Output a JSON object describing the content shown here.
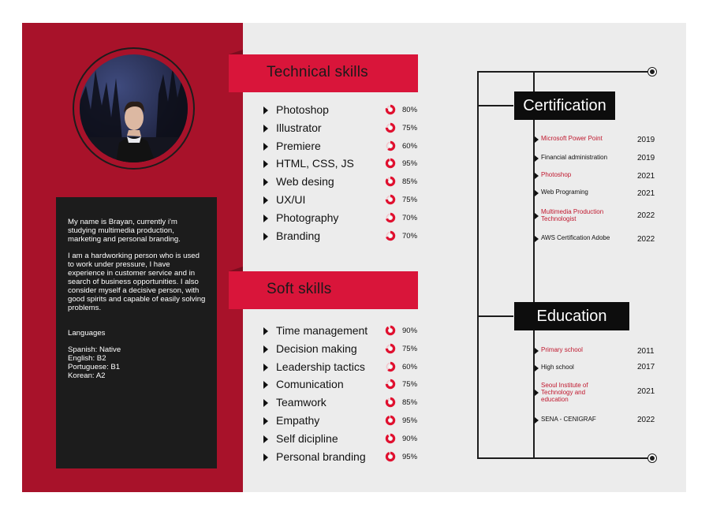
{
  "about": {
    "intro": "My name is Brayan, currently i'm studying multimedia production, marketing and personal branding.",
    "description": "I am a hardworking person who is used to work under pressure, I have experience in customer service and in search of business opportunities. I also consider myself a decisive person, with good spirits and capable of easily solving problems.",
    "languages_title": "Languages",
    "languages": [
      "Spanish: Native",
      "English: B2",
      "Portuguese: B1",
      "Korean: A2"
    ]
  },
  "technical": {
    "title": "Technical skills",
    "skills": [
      {
        "name": "Photoshop",
        "percent": "80%",
        "value": 80
      },
      {
        "name": "Illustrator",
        "percent": "75%",
        "value": 75
      },
      {
        "name": "Premiere",
        "percent": "60%",
        "value": 60
      },
      {
        "name": "HTML, CSS, JS",
        "percent": "95%",
        "value": 95
      },
      {
        "name": "Web desing",
        "percent": "85%",
        "value": 85
      },
      {
        "name": "UX/UI",
        "percent": "75%",
        "value": 75
      },
      {
        "name": "Photography",
        "percent": "70%",
        "value": 70
      },
      {
        "name": "Branding",
        "percent": "70%",
        "value": 70
      }
    ]
  },
  "soft": {
    "title": "Soft skills",
    "skills": [
      {
        "name": "Time management",
        "percent": "90%",
        "value": 90
      },
      {
        "name": "Decision making",
        "percent": "75%",
        "value": 75
      },
      {
        "name": "Leadership tactics",
        "percent": "60%",
        "value": 60
      },
      {
        "name": "Comunication",
        "percent": "75%",
        "value": 75
      },
      {
        "name": "Teamwork",
        "percent": "85%",
        "value": 85
      },
      {
        "name": "Empathy",
        "percent": "95%",
        "value": 95
      },
      {
        "name": "Self dicipline",
        "percent": "90%",
        "value": 90
      },
      {
        "name": "Personal branding",
        "percent": "95%",
        "value": 95
      }
    ]
  },
  "certification": {
    "title": "Certification",
    "items": [
      {
        "title": "Microsoft Power Point",
        "year": "2019",
        "color": "red"
      },
      {
        "title": "Financial administration",
        "year": "2019",
        "color": "dark"
      },
      {
        "title": "Photoshop",
        "year": "2021",
        "color": "red"
      },
      {
        "title": "Web Programing",
        "year": "2021",
        "color": "dark"
      },
      {
        "title": "Multimedia Production Technologist",
        "year": "2022",
        "color": "red"
      },
      {
        "title": "AWS Certification Adobe",
        "year": "2022",
        "color": "dark"
      }
    ]
  },
  "education": {
    "title": "Education",
    "items": [
      {
        "title": "Primary school",
        "year": "2011",
        "color": "red"
      },
      {
        "title": "High school",
        "year": "2017",
        "color": "dark"
      },
      {
        "title": "Seoul Institute of Technology and education",
        "year": "2021",
        "color": "red"
      },
      {
        "title": "SENA - CENIGRAF",
        "year": "2022",
        "color": "dark"
      }
    ]
  },
  "colors": {
    "accent": "#d9153a",
    "panel": "#a8122a",
    "dark": "#1c1c1c",
    "ring": "#e0102f"
  }
}
